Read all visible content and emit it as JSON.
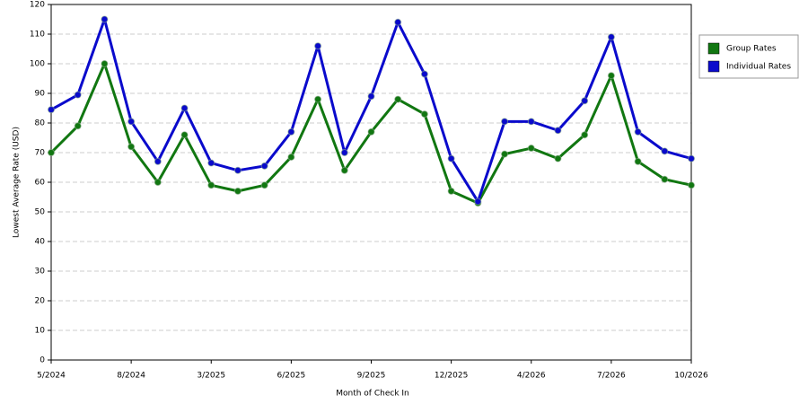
{
  "chart_data": {
    "type": "line",
    "x_label": "Month of Check In",
    "y_label": "Lowest Average Rate (USD)",
    "categories": [
      "5/2024",
      null,
      null,
      "8/2024",
      null,
      null,
      "3/2025",
      null,
      null,
      "6/2025",
      null,
      null,
      "9/2025",
      null,
      null,
      "12/2025",
      null,
      null,
      "4/2026",
      null,
      null,
      "7/2026",
      null,
      null,
      "10/2026"
    ],
    "series": [
      {
        "name": "Group Rates",
        "color": "#117711",
        "values": [
          70,
          79,
          100,
          72,
          60,
          76,
          59,
          57,
          59,
          68.5,
          88,
          64,
          77,
          88,
          83,
          57,
          53,
          69.5,
          71.5,
          68,
          76,
          96,
          67,
          61,
          59
        ]
      },
      {
        "name": "Individual Rates",
        "color": "#0a0acc",
        "values": [
          84.5,
          89.5,
          115,
          80.5,
          67,
          85,
          66.5,
          64,
          65.5,
          77,
          106,
          70,
          89,
          114,
          96.5,
          68,
          53.5,
          80.5,
          80.5,
          77.5,
          87.5,
          109,
          77,
          70.5,
          68
        ]
      }
    ],
    "ylim": [
      0,
      120
    ],
    "yticks": [
      0,
      10,
      20,
      30,
      40,
      50,
      60,
      70,
      80,
      90,
      100,
      110,
      120
    ],
    "grid": true,
    "legend": "right"
  }
}
